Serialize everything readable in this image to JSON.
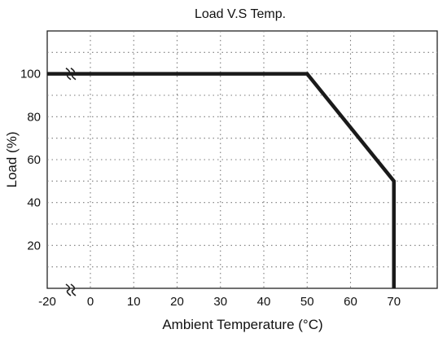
{
  "chart_data": {
    "type": "line",
    "title": "Load V.S Temp.",
    "xlabel": "Ambient Temperature (°C)",
    "ylabel": "Load (%)",
    "x_ticks": [
      "-20",
      "0",
      "10",
      "20",
      "30",
      "40",
      "50",
      "60",
      "70"
    ],
    "y_ticks": [
      "20",
      "40",
      "60",
      "80",
      "100"
    ],
    "xlim": [
      -20,
      80
    ],
    "ylim": [
      0,
      120
    ],
    "axis_break": "x",
    "grid": true,
    "series": [
      {
        "x": [
          -20,
          50,
          70,
          70
        ],
        "y": [
          100,
          100,
          50,
          0
        ]
      }
    ],
    "colors": {
      "line": "#1a1a1a",
      "grid": "#7a7a7a",
      "frame": "#222222"
    }
  }
}
